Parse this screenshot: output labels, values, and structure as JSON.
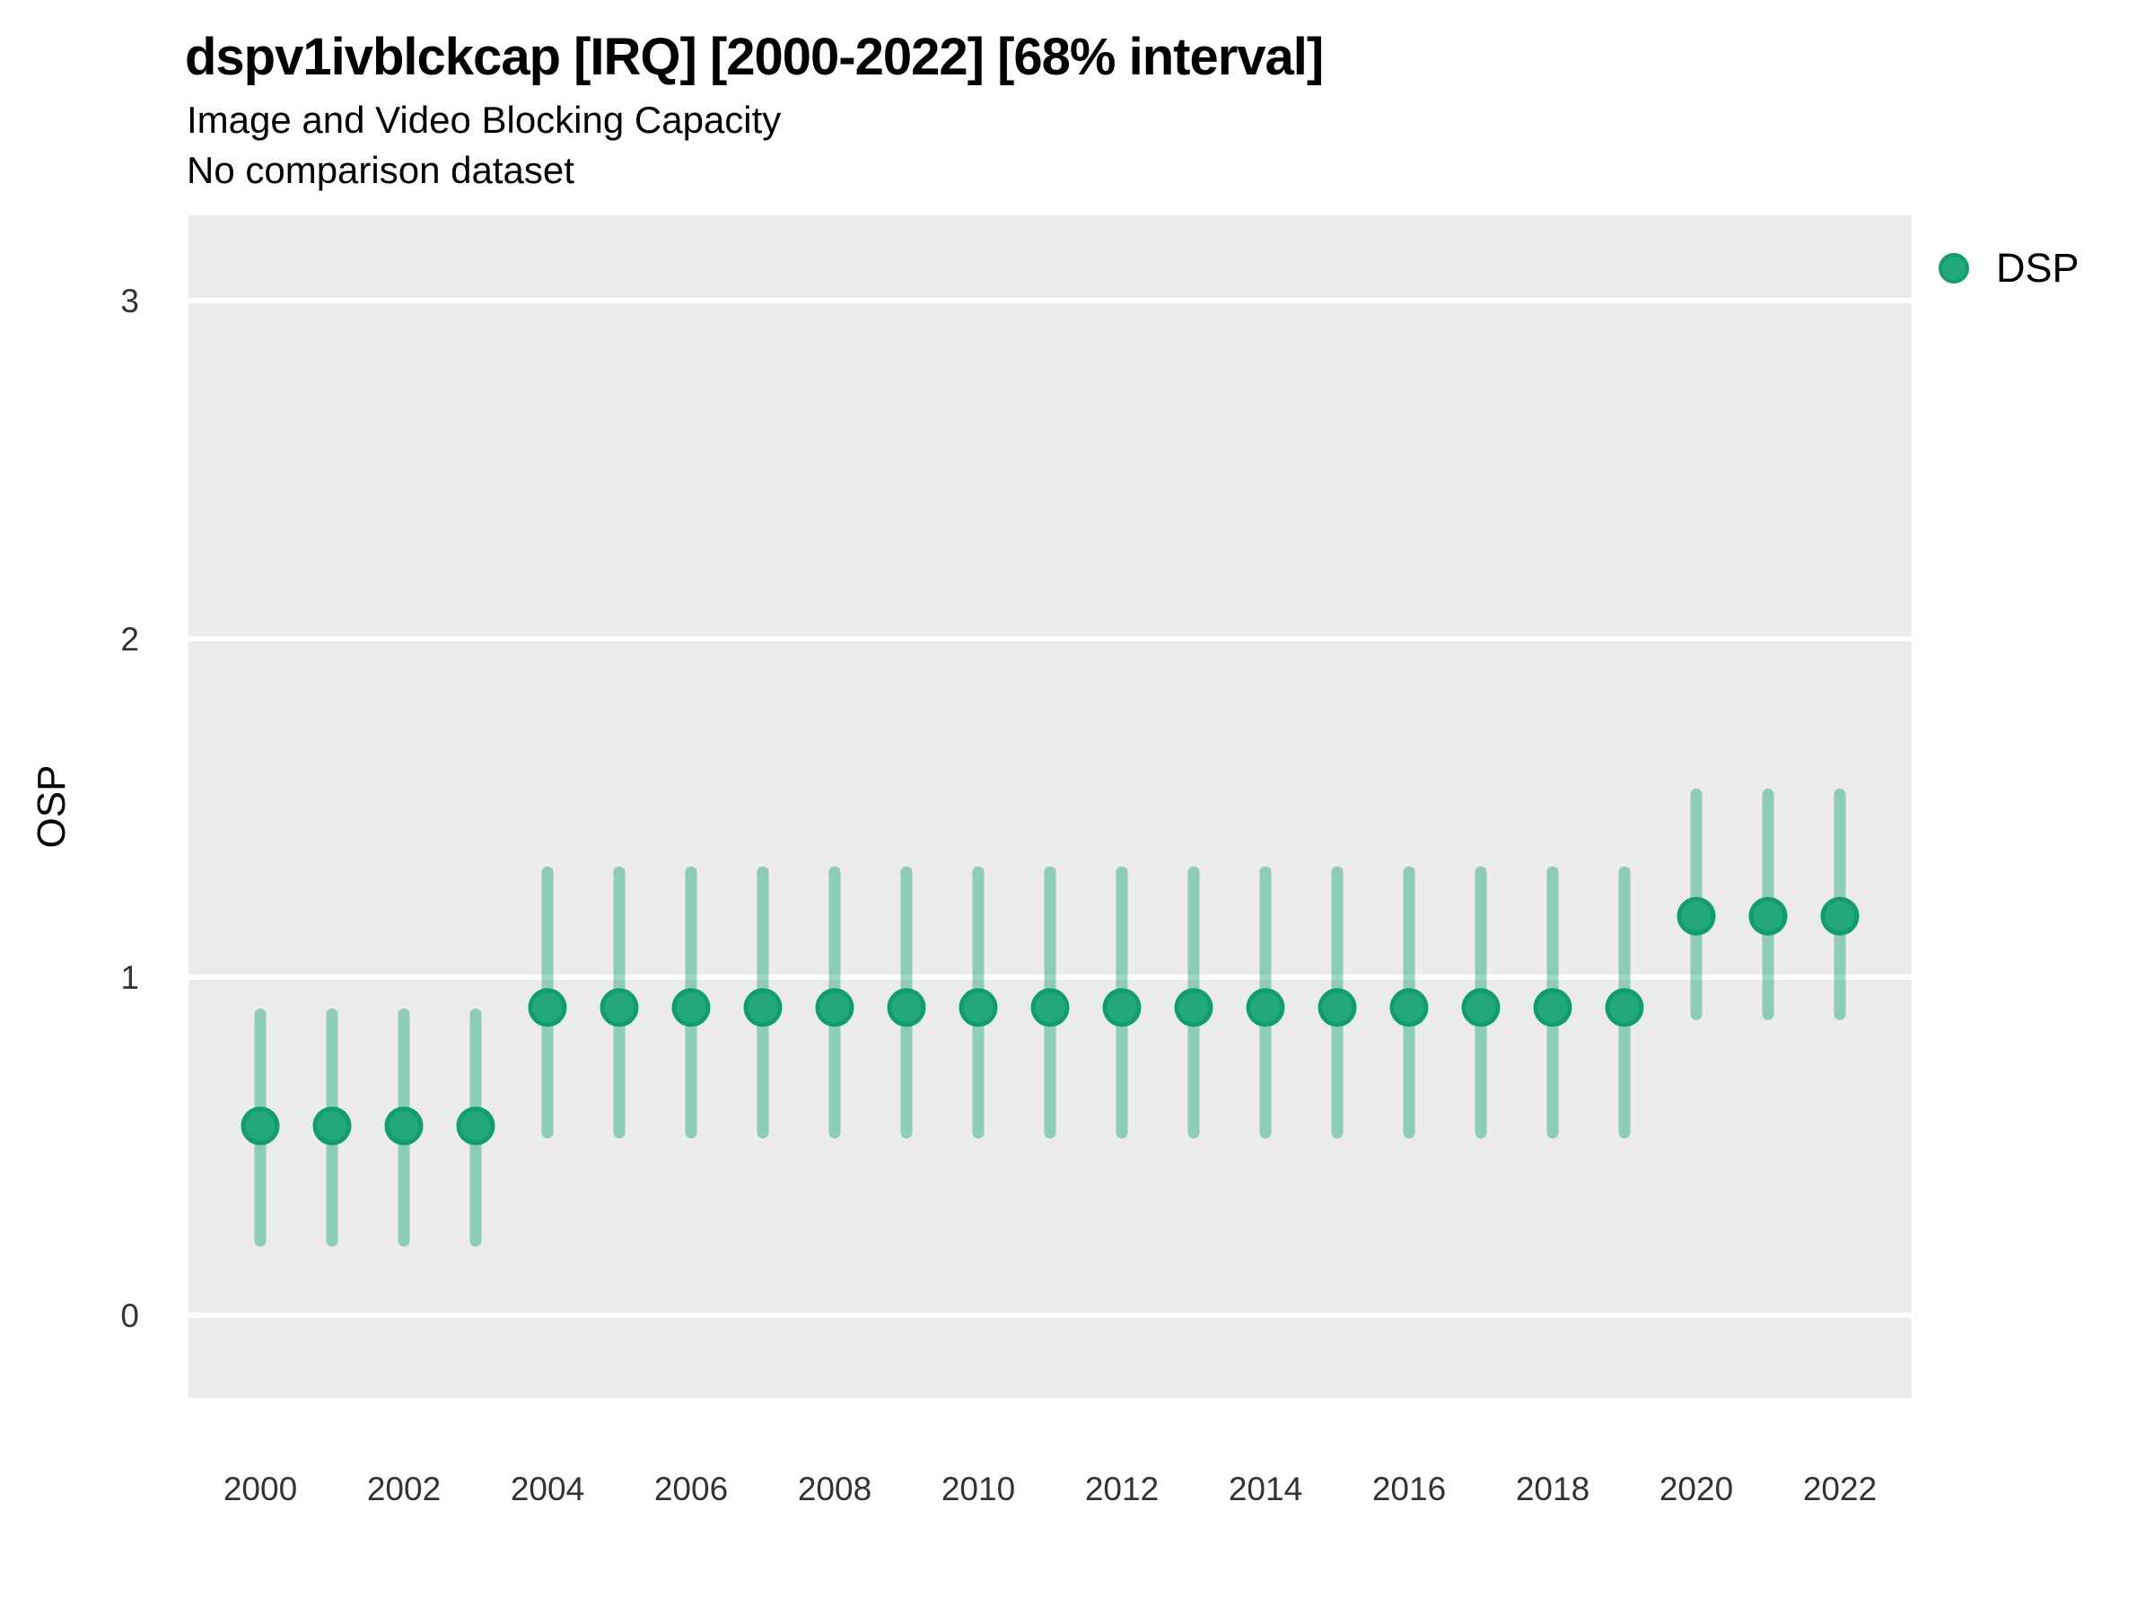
{
  "header": {
    "title": "dspv1ivblckcap [IRQ] [2000-2022] [68% interval]",
    "subtitle1": "Image and Video Blocking Capacity",
    "subtitle2": "No comparison dataset"
  },
  "legend": {
    "items": [
      {
        "label": "DSP",
        "color": "#23a87e",
        "ring_color": "#129c6f"
      }
    ]
  },
  "axes": {
    "y_title": "OSP",
    "y_ticks": [
      "0",
      "1",
      "2",
      "3"
    ],
    "x_ticks": [
      "2000",
      "2002",
      "2004",
      "2006",
      "2008",
      "2010",
      "2012",
      "2014",
      "2016",
      "2018",
      "2020",
      "2022"
    ]
  },
  "style": {
    "panel_bg": "#ebebeb",
    "gridline": "#ffffff",
    "point_fill": "#23a87e",
    "point_stroke": "#129c6f",
    "interval_color": "rgba(31,165,124,0.45)",
    "tick_text": "#333333"
  },
  "chart_data": {
    "type": "pointrange",
    "title": "dspv1ivblckcap [IRQ] [2000-2022] [68% interval]",
    "subtitle": "Image and Video Blocking Capacity",
    "note": "No comparison dataset",
    "interval_level": "68%",
    "xlabel": "",
    "ylabel": "OSP",
    "ylim": [
      -0.24,
      3.25
    ],
    "y_gridlines": [
      0,
      1,
      2,
      3
    ],
    "legend_position": "right",
    "series_name": "DSP",
    "points": [
      {
        "year": 2000,
        "est": 0.56,
        "lo": 0.22,
        "hi": 0.89
      },
      {
        "year": 2001,
        "est": 0.56,
        "lo": 0.22,
        "hi": 0.89
      },
      {
        "year": 2002,
        "est": 0.56,
        "lo": 0.22,
        "hi": 0.89
      },
      {
        "year": 2003,
        "est": 0.56,
        "lo": 0.22,
        "hi": 0.89
      },
      {
        "year": 2004,
        "est": 0.91,
        "lo": 0.54,
        "hi": 1.31
      },
      {
        "year": 2005,
        "est": 0.91,
        "lo": 0.54,
        "hi": 1.31
      },
      {
        "year": 2006,
        "est": 0.91,
        "lo": 0.54,
        "hi": 1.31
      },
      {
        "year": 2007,
        "est": 0.91,
        "lo": 0.54,
        "hi": 1.31
      },
      {
        "year": 2008,
        "est": 0.91,
        "lo": 0.54,
        "hi": 1.31
      },
      {
        "year": 2009,
        "est": 0.91,
        "lo": 0.54,
        "hi": 1.31
      },
      {
        "year": 2010,
        "est": 0.91,
        "lo": 0.54,
        "hi": 1.31
      },
      {
        "year": 2011,
        "est": 0.91,
        "lo": 0.54,
        "hi": 1.31
      },
      {
        "year": 2012,
        "est": 0.91,
        "lo": 0.54,
        "hi": 1.31
      },
      {
        "year": 2013,
        "est": 0.91,
        "lo": 0.54,
        "hi": 1.31
      },
      {
        "year": 2014,
        "est": 0.91,
        "lo": 0.54,
        "hi": 1.31
      },
      {
        "year": 2015,
        "est": 0.91,
        "lo": 0.54,
        "hi": 1.31
      },
      {
        "year": 2016,
        "est": 0.91,
        "lo": 0.54,
        "hi": 1.31
      },
      {
        "year": 2017,
        "est": 0.91,
        "lo": 0.54,
        "hi": 1.31
      },
      {
        "year": 2018,
        "est": 0.91,
        "lo": 0.54,
        "hi": 1.31
      },
      {
        "year": 2019,
        "est": 0.91,
        "lo": 0.54,
        "hi": 1.31
      },
      {
        "year": 2020,
        "est": 1.18,
        "lo": 0.89,
        "hi": 1.54
      },
      {
        "year": 2021,
        "est": 1.18,
        "lo": 0.89,
        "hi": 1.54
      },
      {
        "year": 2022,
        "est": 1.18,
        "lo": 0.89,
        "hi": 1.54
      }
    ]
  }
}
